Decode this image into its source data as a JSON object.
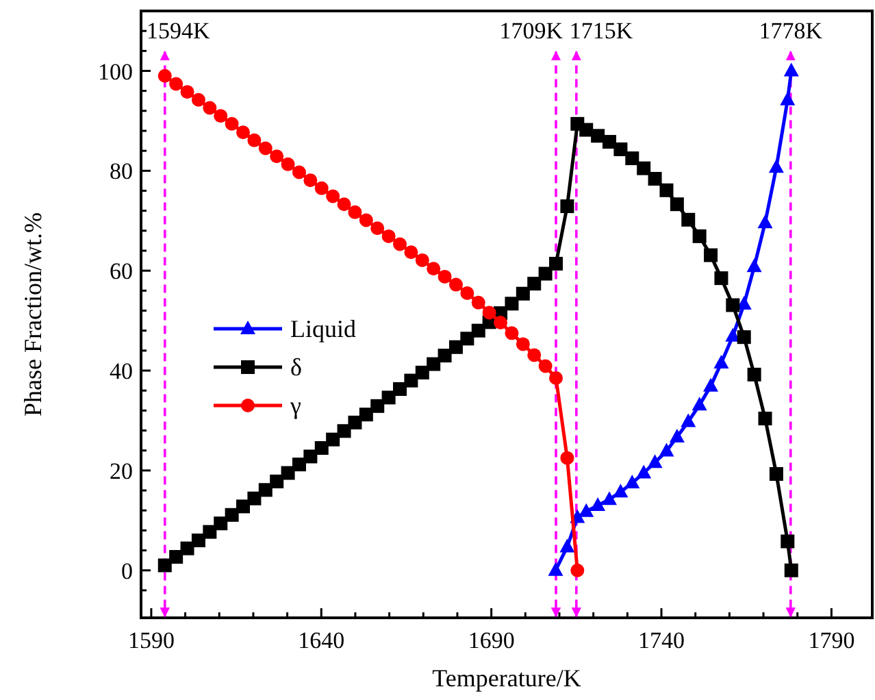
{
  "chart_data": {
    "type": "line",
    "xlabel": "Temperature/K",
    "ylabel": "Phase Fraction/wt.%",
    "xlim": [
      1587,
      1802
    ],
    "ylim": [
      -9.5,
      112
    ],
    "xticks": [
      1590,
      {
        "value": 1600,
        "label": null
      },
      {
        "value": 1610,
        "label": null
      },
      {
        "value": 1620,
        "label": null
      },
      {
        "value": 1630,
        "label": null
      },
      1640,
      {
        "value": 1650,
        "label": null
      },
      {
        "value": 1660,
        "label": null
      },
      {
        "value": 1670,
        "label": null
      },
      {
        "value": 1680,
        "label": null
      },
      1690,
      {
        "value": 1700,
        "label": null
      },
      {
        "value": 1710,
        "label": null
      },
      {
        "value": 1720,
        "label": null
      },
      {
        "value": 1730,
        "label": null
      },
      1740,
      {
        "value": 1750,
        "label": null
      },
      {
        "value": 1760,
        "label": null
      },
      {
        "value": 1770,
        "label": null
      },
      {
        "value": 1780,
        "label": null
      },
      1790
    ],
    "yticks": [
      {
        "value": -4,
        "label": null
      },
      0,
      {
        "value": 4,
        "label": null
      },
      {
        "value": 8,
        "label": null
      },
      {
        "value": 12,
        "label": null
      },
      {
        "value": 16,
        "label": null
      },
      20,
      {
        "value": 24,
        "label": null
      },
      {
        "value": 28,
        "label": null
      },
      {
        "value": 32,
        "label": null
      },
      {
        "value": 36,
        "label": null
      },
      40,
      {
        "value": 44,
        "label": null
      },
      {
        "value": 48,
        "label": null
      },
      {
        "value": 52,
        "label": null
      },
      {
        "value": 56,
        "label": null
      },
      60,
      {
        "value": 64,
        "label": null
      },
      {
        "value": 68,
        "label": null
      },
      {
        "value": 72,
        "label": null
      },
      {
        "value": 76,
        "label": null
      },
      80,
      {
        "value": 84,
        "label": null
      },
      {
        "value": 88,
        "label": null
      },
      {
        "value": 92,
        "label": null
      },
      {
        "value": 96,
        "label": null
      },
      100,
      {
        "value": 104,
        "label": null
      },
      {
        "value": 108,
        "label": null
      }
    ],
    "grid": false,
    "legend": "left",
    "line_style": "solid",
    "series": [
      {
        "name": "Liquid",
        "color": "#0000ff",
        "marker": "triangle",
        "x": [
          1708.9,
          1712.3,
          1715.3,
          1717.9,
          1721.3,
          1724.7,
          1728.0,
          1731.4,
          1734.8,
          1738.1,
          1741.5,
          1744.6,
          1747.9,
          1751.2,
          1754.5,
          1757.6,
          1761.0,
          1764.3,
          1767.3,
          1770.5,
          1773.8,
          1777.1,
          1778.2
        ],
        "values": [
          0,
          4.7,
          10.6,
          11.8,
          13.0,
          14.2,
          15.7,
          17.5,
          19.5,
          21.6,
          23.9,
          26.7,
          29.8,
          33.1,
          36.9,
          41.5,
          46.9,
          53.3,
          60.8,
          69.6,
          80.7,
          94.2,
          100
        ]
      },
      {
        "name": "δ",
        "color": "#000000",
        "marker": "square",
        "x": [
          1594.0,
          1597.3,
          1600.6,
          1603.9,
          1607.2,
          1610.4,
          1613.7,
          1617.0,
          1620.3,
          1623.6,
          1626.9,
          1630.2,
          1633.5,
          1636.8,
          1640.1,
          1643.4,
          1646.7,
          1649.9,
          1653.2,
          1656.5,
          1659.8,
          1663.1,
          1666.4,
          1669.7,
          1673.0,
          1676.3,
          1679.6,
          1682.9,
          1686.2,
          1689.4,
          1692.7,
          1696.0,
          1699.3,
          1702.6,
          1705.9,
          1709.0,
          1712.3,
          1715.3,
          1717.9,
          1721.3,
          1724.7,
          1728.0,
          1731.4,
          1734.8,
          1738.1,
          1741.5,
          1744.6,
          1747.9,
          1751.2,
          1754.5,
          1757.6,
          1761.0,
          1764.3,
          1767.3,
          1770.5,
          1773.8,
          1777.1,
          1778.2
        ],
        "values": [
          1.0,
          2.7,
          4.4,
          6.0,
          7.7,
          9.4,
          11.1,
          12.8,
          14.4,
          16.1,
          17.8,
          19.5,
          21.2,
          22.8,
          24.5,
          26.2,
          27.9,
          29.6,
          31.2,
          32.9,
          34.6,
          36.3,
          38.0,
          39.6,
          41.3,
          43.0,
          44.7,
          46.4,
          48.0,
          49.7,
          51.5,
          53.4,
          55.4,
          57.4,
          59.4,
          61.4,
          72.9,
          89.4,
          88.2,
          87.0,
          85.8,
          84.3,
          82.5,
          80.5,
          78.4,
          76.1,
          73.3,
          70.2,
          66.9,
          63.1,
          58.5,
          53.1,
          46.7,
          39.2,
          30.4,
          19.3,
          5.8,
          0
        ]
      },
      {
        "name": "γ",
        "color": "#ff0000",
        "marker": "circle",
        "x": [
          1594.0,
          1597.3,
          1600.6,
          1603.9,
          1607.2,
          1610.4,
          1613.7,
          1617.0,
          1620.3,
          1623.6,
          1626.9,
          1630.2,
          1633.5,
          1636.8,
          1640.1,
          1643.4,
          1646.7,
          1649.9,
          1653.2,
          1656.5,
          1659.8,
          1663.1,
          1666.4,
          1669.7,
          1673.0,
          1676.3,
          1679.6,
          1682.9,
          1686.2,
          1689.4,
          1692.7,
          1696.0,
          1699.3,
          1702.6,
          1705.9,
          1709.0,
          1712.3,
          1715.3
        ],
        "values": [
          99.0,
          97.4,
          95.8,
          94.2,
          92.6,
          91.0,
          89.4,
          87.7,
          86.1,
          84.5,
          82.9,
          81.3,
          79.7,
          78.1,
          76.5,
          74.9,
          73.3,
          71.7,
          70.1,
          68.5,
          66.9,
          65.3,
          63.7,
          62.1,
          60.4,
          58.8,
          57.2,
          55.5,
          53.6,
          51.6,
          49.6,
          47.5,
          45.3,
          43.1,
          40.9,
          38.5,
          22.5,
          0
        ]
      }
    ],
    "ref_lines": [
      {
        "axis": "x",
        "value": 1594,
        "label": "1594K",
        "color": "#ff00ff",
        "line_style": "dashed"
      },
      {
        "axis": "x",
        "value": 1709,
        "label": "1709K",
        "color": "#ff00ff",
        "line_style": "dashed"
      },
      {
        "axis": "x",
        "value": 1715,
        "label": "1715K",
        "color": "#ff00ff",
        "line_style": "dashed"
      },
      {
        "axis": "x",
        "value": 1778,
        "label": "1778K",
        "color": "#ff00ff",
        "line_style": "dashed"
      }
    ]
  }
}
